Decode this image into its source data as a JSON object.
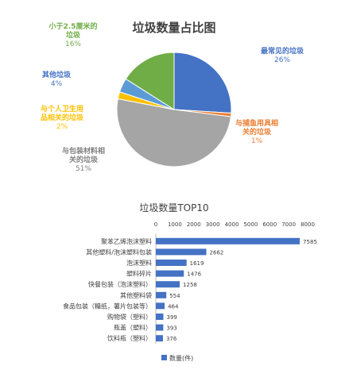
{
  "colors": {
    "blue": "#4472c4",
    "orange": "#ed7d31",
    "gray": "#a5a5a5",
    "yellow": "#ffc000",
    "lightblue": "#5b9bd5",
    "green": "#70ad47",
    "title": "#404040",
    "axis_text": "#404040"
  },
  "chart_data": [
    {
      "type": "pie",
      "title": "垃圾数量占比图",
      "slices": [
        {
          "label_lines": [
            "最常见的垃圾"
          ],
          "percent_label": "26%",
          "value": 26,
          "color": "#4472c4"
        },
        {
          "label_lines": [
            "与捕鱼用具相",
            "关的垃圾"
          ],
          "percent_label": "1%",
          "value": 1,
          "color": "#ed7d31"
        },
        {
          "label_lines": [
            "与包装材料相",
            "关的垃圾"
          ],
          "percent_label": "51%",
          "value": 51,
          "color": "#a5a5a5"
        },
        {
          "label_lines": [
            "与个人卫生用",
            "品相关的垃圾"
          ],
          "percent_label": "2%",
          "value": 2,
          "color": "#ffc000"
        },
        {
          "label_lines": [
            "其他垃圾"
          ],
          "percent_label": "4%",
          "value": 4,
          "color": "#5b9bd5"
        },
        {
          "label_lines": [
            "小于2.5厘米的",
            "垃圾"
          ],
          "percent_label": "16%",
          "value": 16,
          "color": "#70ad47"
        }
      ]
    },
    {
      "type": "bar",
      "orientation": "horizontal",
      "title": "垃圾数量TOP10",
      "categories": [
        "聚苯乙烯泡沫塑料",
        "其他塑料/泡沫塑料包装",
        "泡沫塑料",
        "塑料碎片",
        "快餐包装（泡沫塑料）",
        "其他塑料袋",
        "食品包装（糖纸，薯片包装等）",
        "购物袋（塑料）",
        "瓶盖（塑料）",
        "饮料瓶（塑料）"
      ],
      "series": [
        {
          "name": "数量(件)",
          "values": [
            7585,
            2662,
            1619,
            1476,
            1258,
            554,
            464,
            399,
            393,
            376
          ]
        }
      ],
      "xlim": [
        0,
        8000
      ],
      "xticks": [
        0,
        1000,
        2000,
        3000,
        4000,
        5000,
        6000,
        7000,
        8000
      ],
      "legend_position": "bottom",
      "bar_color": "#4472c4"
    }
  ]
}
